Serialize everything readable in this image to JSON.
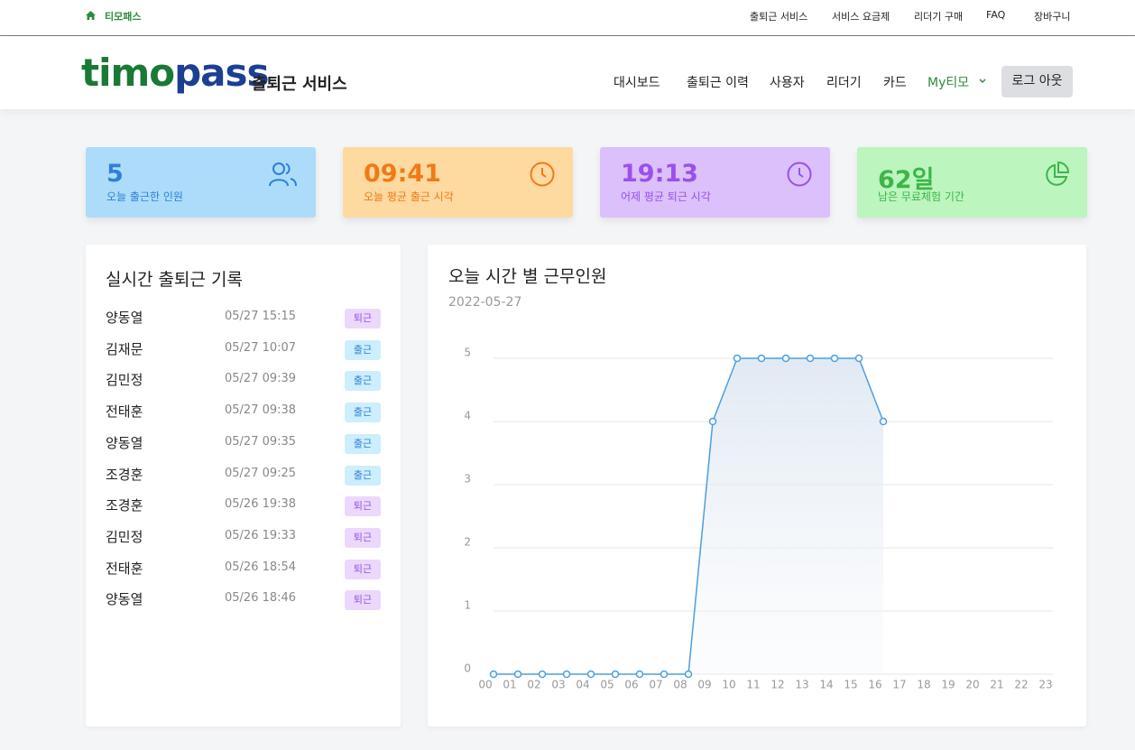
{
  "topbar": {
    "brand": "티모패스",
    "links": [
      "출퇴근 서비스",
      "서비스 요금제",
      "리더기 구매",
      "FAQ",
      "장바구니"
    ]
  },
  "header": {
    "logo": [
      "timo",
      "pass"
    ],
    "service": "출퇴근 서비스",
    "nav": [
      "대시보드",
      "출퇴근 이력",
      "사용자",
      "리더기",
      "카드"
    ],
    "my": "My티모",
    "logout": "로그 아웃"
  },
  "stats": [
    {
      "value": 5,
      "label": "오늘 출근한 인원"
    },
    {
      "value": "09:41",
      "label": "오늘 평균 출근 시각"
    },
    {
      "value": "19:13",
      "label": "어제 평균 퇴근 시각"
    },
    {
      "value": "62일",
      "label": "남은 무료체험 기간"
    }
  ],
  "records": {
    "title": "실시간 출퇴근 기록",
    "rows": [
      {
        "name": "양동열",
        "time": "05/27 15:15",
        "status": "퇴근"
      },
      {
        "name": "김재문",
        "time": "05/27 10:07",
        "status": "출근"
      },
      {
        "name": "김민정",
        "time": "05/27 09:39",
        "status": "출근"
      },
      {
        "name": "전태훈",
        "time": "05/27 09:38",
        "status": "출근"
      },
      {
        "name": "양동열",
        "time": "05/27 09:35",
        "status": "출근"
      },
      {
        "name": "조경훈",
        "time": "05/27 09:25",
        "status": "출근"
      },
      {
        "name": "조경훈",
        "time": "05/26 19:38",
        "status": "퇴근"
      },
      {
        "name": "김민정",
        "time": "05/26 19:33",
        "status": "퇴근"
      },
      {
        "name": "전태훈",
        "time": "05/26 18:54",
        "status": "퇴근"
      },
      {
        "name": "양동열",
        "time": "05/26 18:46",
        "status": "퇴근"
      }
    ]
  },
  "chart_data": {
    "type": "line",
    "title": "오늘 시간 별 근무인원",
    "subtitle": "2022-05-27",
    "categories": [
      "00",
      "01",
      "02",
      "03",
      "04",
      "05",
      "06",
      "07",
      "08",
      "09",
      "10",
      "11",
      "12",
      "13",
      "14",
      "15",
      "16",
      "17",
      "18",
      "19",
      "20",
      "21",
      "22",
      "23"
    ],
    "values": [
      0,
      0,
      0,
      0,
      0,
      0,
      0,
      0,
      0,
      4,
      5,
      5,
      5,
      5,
      5,
      5,
      4,
      null,
      null,
      null,
      null,
      null,
      null,
      null
    ],
    "color": "#4a9fe0",
    "ylim": [
      0,
      5
    ],
    "yticks": [
      0,
      1,
      2,
      3,
      4,
      5
    ],
    "grid": true
  }
}
